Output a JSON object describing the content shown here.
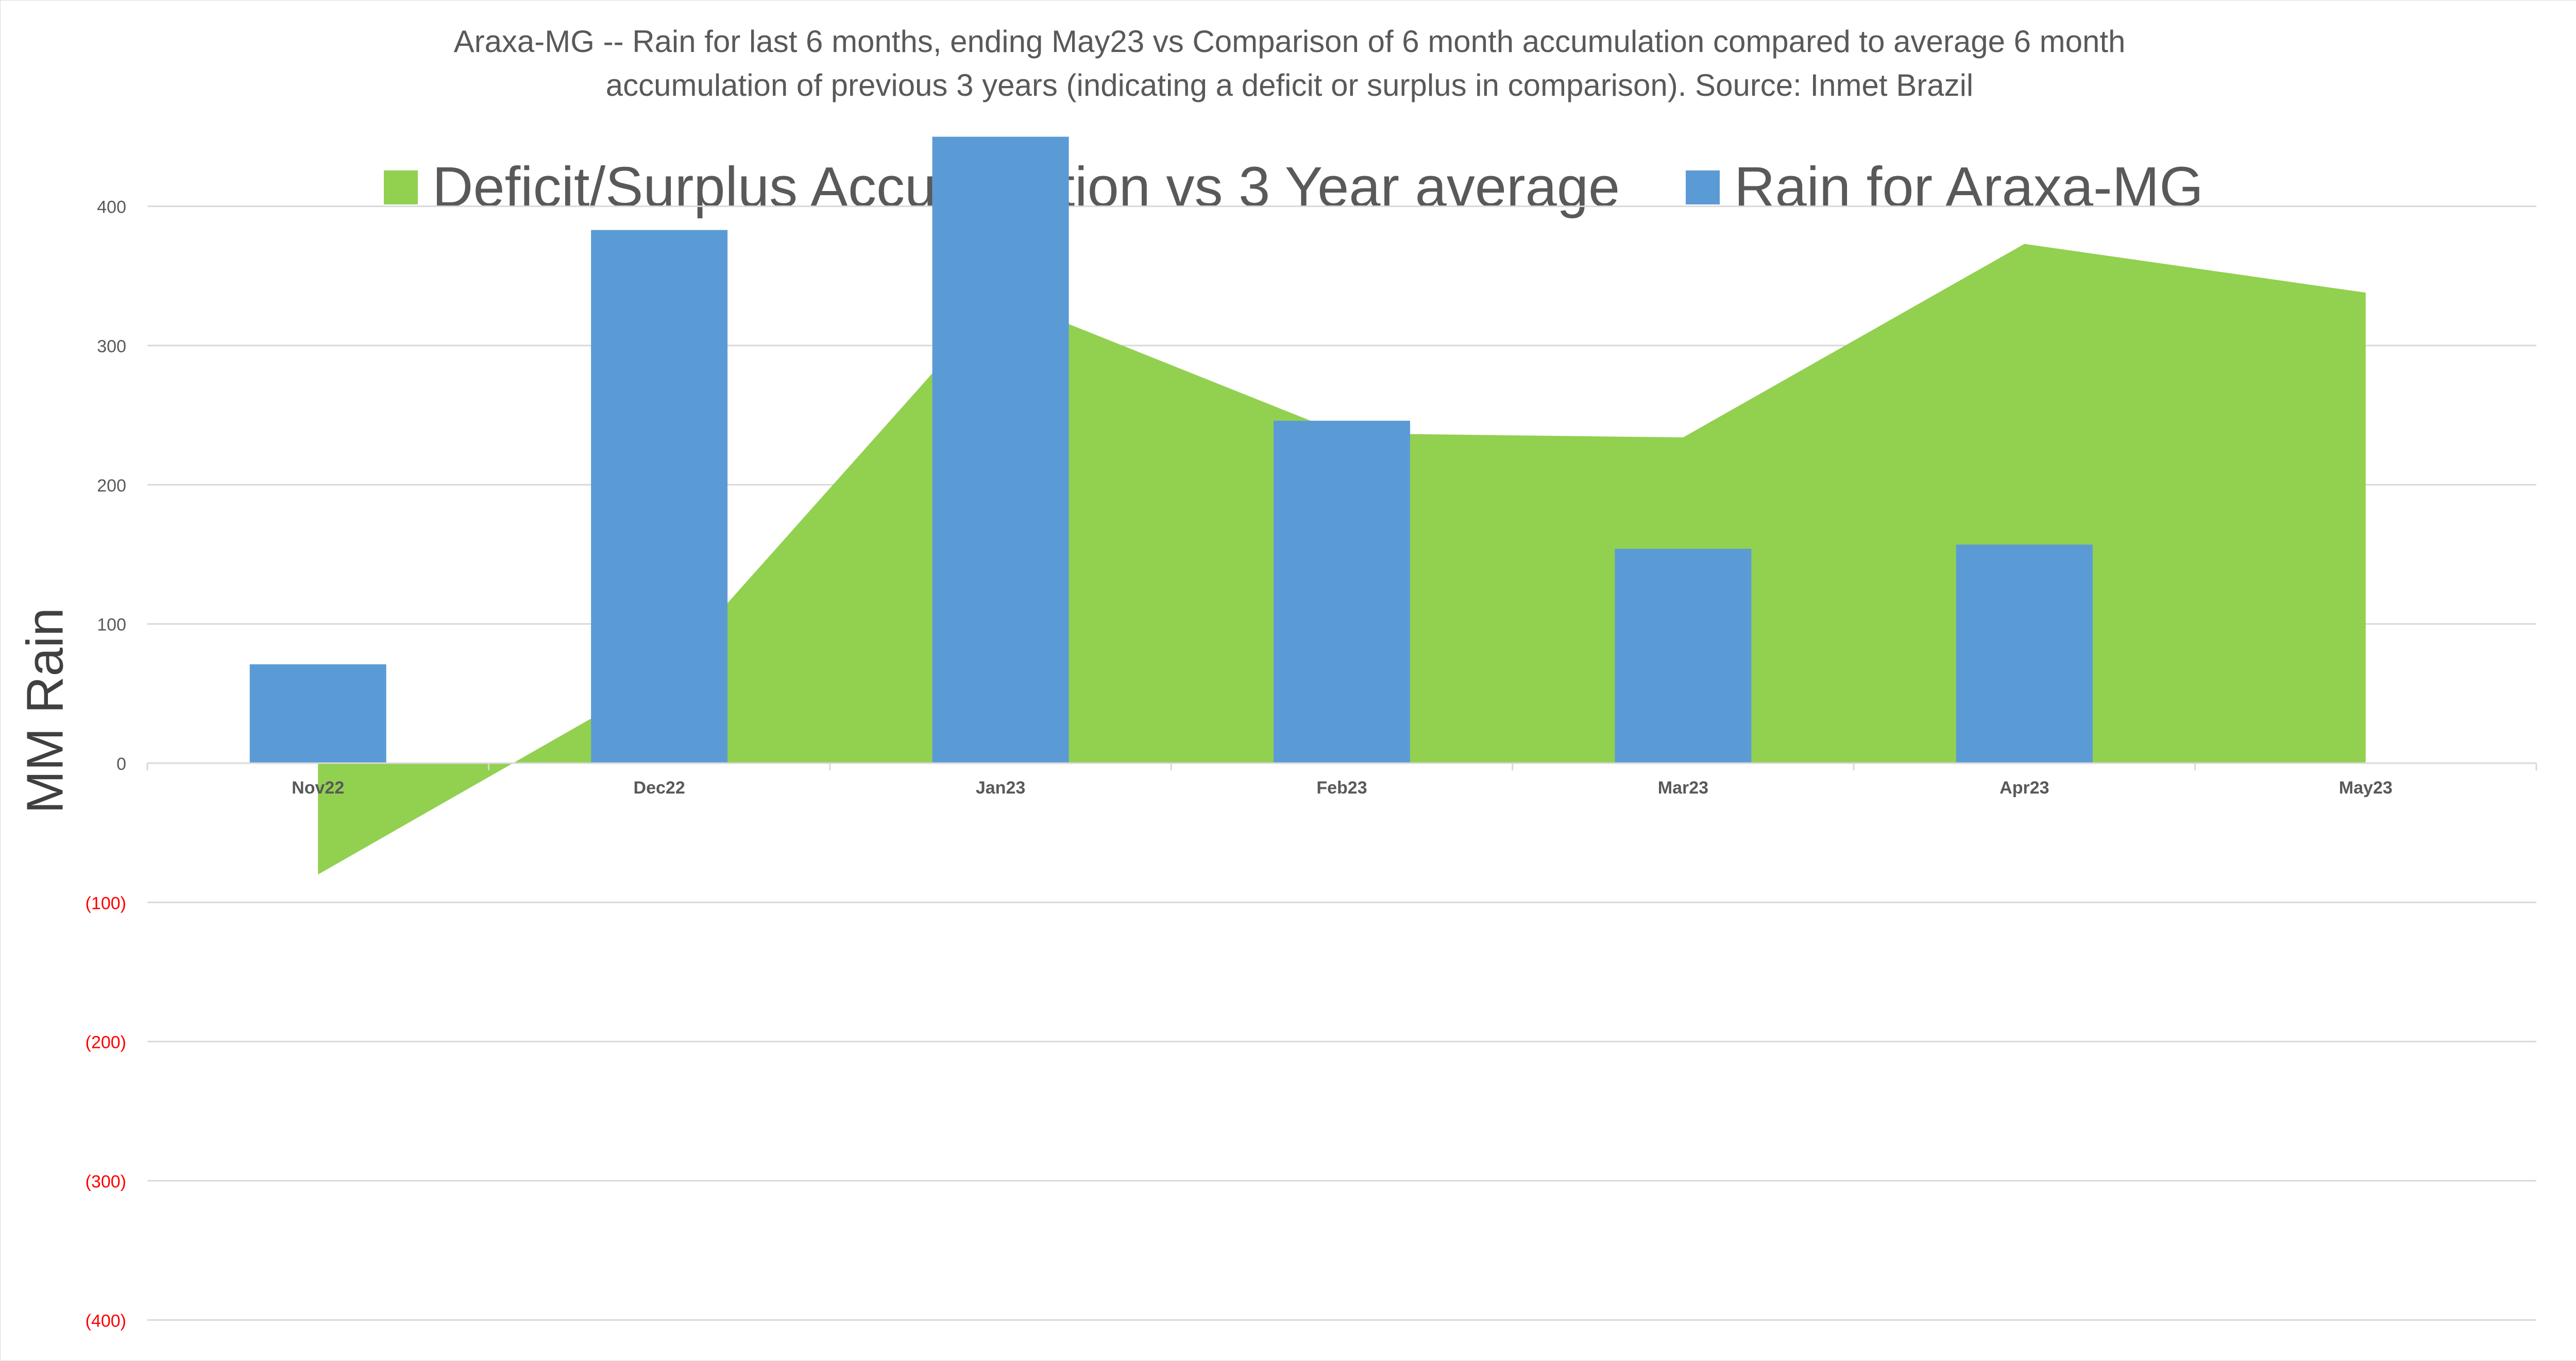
{
  "chart_data": {
    "type": "bar",
    "title_line1": "Araxa-MG -- Rain for last 6 months, ending May23  vs Comparison of 6 month accumulation compared to average 6 month",
    "title_line2": "accumulation of previous 3 years  (indicating a deficit or surplus in comparison). Source: Inmet Brazil",
    "ylabel": "MM Rain",
    "xlabel": "",
    "ylim": [
      -400,
      450
    ],
    "yticks": [
      400,
      300,
      200,
      100,
      0,
      -100,
      -200,
      -300,
      -400
    ],
    "ytick_labels": [
      "400",
      "300",
      "200",
      "100",
      "0",
      "(100)",
      "(200)",
      "(300)",
      "(400)"
    ],
    "negative_tick_color": "#ff0000",
    "categories": [
      "Nov22",
      "Dec22",
      "Jan23",
      "Feb23",
      "Mar23",
      "Apr23",
      "May23"
    ],
    "grid": true,
    "legend_position": "top",
    "series": [
      {
        "name": "Deficit/Surplus Accumulation vs 3 Year average",
        "type": "area",
        "color": "#92d050",
        "values": [
          -80,
          60,
          335,
          237,
          234,
          373,
          338
        ]
      },
      {
        "name": "Rain for Araxa-MG",
        "type": "bar",
        "color": "#5b9bd5",
        "values": [
          71,
          383,
          450,
          246,
          154,
          157,
          null
        ]
      }
    ]
  }
}
